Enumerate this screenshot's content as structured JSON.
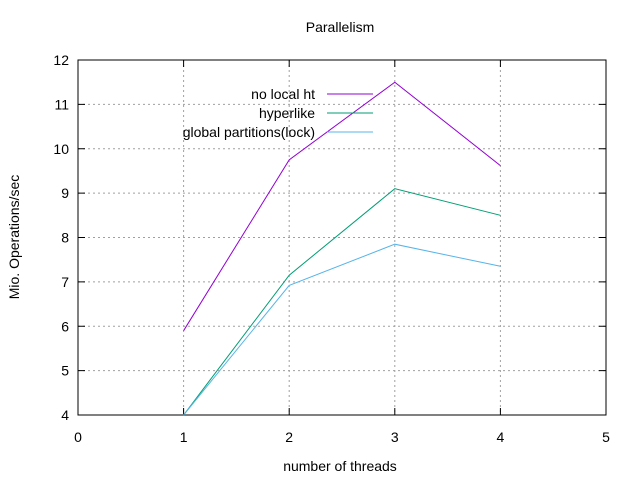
{
  "chart_data": {
    "type": "line",
    "title": "Parallelism",
    "xlabel": "number of threads",
    "ylabel": "Mio. Operations/sec",
    "xlim": [
      0,
      5
    ],
    "ylim": [
      4,
      12
    ],
    "xticks": [
      0,
      1,
      2,
      3,
      4,
      5
    ],
    "yticks": [
      4,
      5,
      6,
      7,
      8,
      9,
      10,
      11,
      12
    ],
    "grid": true,
    "legend_position": "top-center",
    "x": [
      1,
      2,
      3,
      4
    ],
    "series": [
      {
        "name": "no local ht",
        "color": "#9400d3",
        "values": [
          5.9,
          9.75,
          11.5,
          9.62
        ]
      },
      {
        "name": "hyperlike",
        "color": "#009e73",
        "values": [
          4.0,
          7.15,
          9.1,
          8.5
        ]
      },
      {
        "name": "global partitions(lock)",
        "color": "#56b4e9",
        "values": [
          4.0,
          6.92,
          7.85,
          7.35
        ]
      }
    ]
  }
}
